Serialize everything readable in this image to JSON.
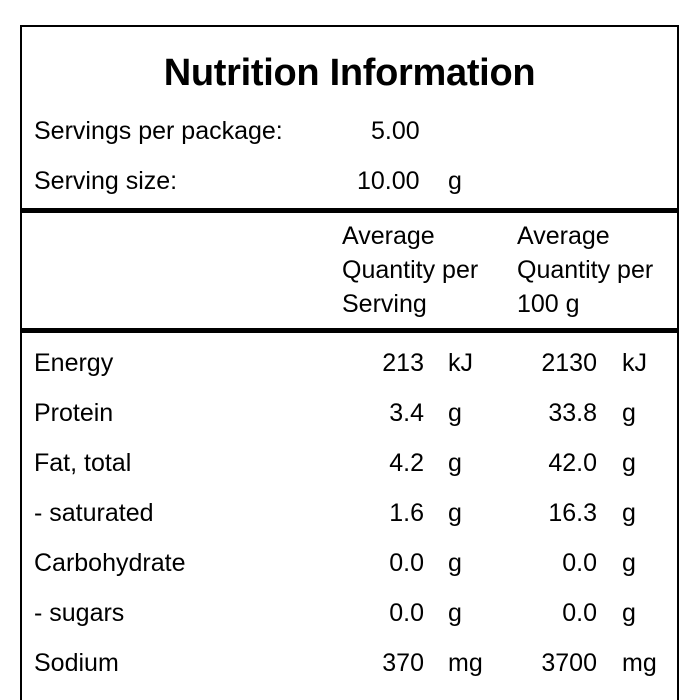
{
  "title": "Nutrition Information",
  "servings": {
    "per_package_label": "Servings per package:",
    "per_package_value": "5.00",
    "size_label": "Serving size:",
    "size_value": "10.00",
    "size_unit": "g"
  },
  "header": {
    "per_serving": [
      "Average",
      "Quantity per",
      "Serving"
    ],
    "per_100g": [
      "Average",
      "Quantity per",
      "100 g"
    ]
  },
  "rows": [
    {
      "name": "Energy",
      "serving_value": "213",
      "serving_unit": "kJ",
      "per100_value": "2130",
      "per100_unit": "kJ"
    },
    {
      "name": "Protein",
      "serving_value": "3.4",
      "serving_unit": "g",
      "per100_value": "33.8",
      "per100_unit": "g"
    },
    {
      "name": "Fat, total",
      "serving_value": "4.2",
      "serving_unit": "g",
      "per100_value": "42.0",
      "per100_unit": "g"
    },
    {
      "name": "- saturated",
      "serving_value": "1.6",
      "serving_unit": "g",
      "per100_value": "16.3",
      "per100_unit": "g"
    },
    {
      "name": "Carbohydrate",
      "serving_value": "0.0",
      "serving_unit": "g",
      "per100_value": "0.0",
      "per100_unit": "g"
    },
    {
      "name": "- sugars",
      "serving_value": "0.0",
      "serving_unit": "g",
      "per100_value": "0.0",
      "per100_unit": "g"
    },
    {
      "name": "Sodium",
      "serving_value": "370",
      "serving_unit": "mg",
      "per100_value": "3700",
      "per100_unit": "mg"
    }
  ]
}
